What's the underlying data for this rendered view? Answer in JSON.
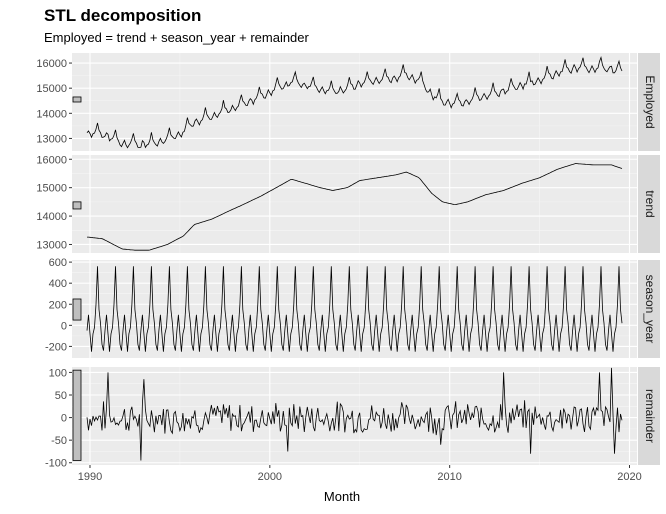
{
  "chart_data": {
    "type": "line",
    "title": "STL decomposition",
    "subtitle": "Employed = trend + season_year + remainder",
    "xlabel": "Month",
    "x_range": [
      "1989-01",
      "2020-06"
    ],
    "x_ticks": [
      {
        "year": 1990,
        "label": "1990"
      },
      {
        "year": 2000,
        "label": "2000"
      },
      {
        "year": 2010,
        "label": "2010"
      },
      {
        "year": 2020,
        "label": "2020"
      }
    ],
    "x_start": "1989-11",
    "x_end": "2019-08",
    "grid": true,
    "panels": [
      {
        "strip": "Employed",
        "ylim": [
          12500,
          16400
        ],
        "yticks": [
          13000,
          14000,
          15000,
          16000
        ],
        "scale_bar": [
          14450,
          14650
        ],
        "series": {
          "trend_anchors": [
            [
              1989.9,
              13200
            ],
            [
              1990.5,
              13150
            ],
            [
              1991.5,
              12900
            ],
            [
              1992.5,
              12800
            ],
            [
              1993.0,
              12780
            ],
            [
              1994.0,
              13000
            ],
            [
              1995.0,
              13300
            ],
            [
              1995.5,
              13650
            ],
            [
              1996.5,
              13850
            ],
            [
              1997.5,
              14100
            ],
            [
              1998.5,
              14350
            ],
            [
              1999.5,
              14650
            ],
            [
              2000.0,
              14950
            ],
            [
              2001.0,
              15100
            ],
            [
              2002.0,
              15000
            ],
            [
              2003.0,
              14900
            ],
            [
              2004.0,
              15000
            ],
            [
              2005.0,
              15150
            ],
            [
              2006.0,
              15300
            ],
            [
              2007.0,
              15450
            ],
            [
              2007.8,
              15550
            ],
            [
              2008.5,
              15300
            ],
            [
              2009.0,
              14800
            ],
            [
              2010.0,
              14450
            ],
            [
              2011.0,
              14550
            ],
            [
              2012.0,
              14750
            ],
            [
              2013.0,
              14900
            ],
            [
              2014.0,
              15100
            ],
            [
              2015.0,
              15300
            ],
            [
              2016.0,
              15550
            ],
            [
              2017.0,
              15700
            ],
            [
              2018.0,
              15750
            ],
            [
              2019.7,
              15700
            ]
          ],
          "seasonal_amplitude": 400
        }
      },
      {
        "strip": "trend",
        "ylim": [
          12700,
          16150
        ],
        "yticks": [
          13000,
          14000,
          15000,
          16000
        ],
        "scale_bar": [
          14250,
          14500
        ],
        "series": {
          "trend_anchors": [
            [
              1989.9,
              13260
            ],
            [
              1990.7,
              13200
            ],
            [
              1991.3,
              13000
            ],
            [
              1991.8,
              12840
            ],
            [
              1992.5,
              12800
            ],
            [
              1993.3,
              12800
            ],
            [
              1994.3,
              13000
            ],
            [
              1995.2,
              13300
            ],
            [
              1995.8,
              13700
            ],
            [
              1996.8,
              13900
            ],
            [
              1997.8,
              14200
            ],
            [
              1998.5,
              14400
            ],
            [
              1999.5,
              14700
            ],
            [
              2000.5,
              15050
            ],
            [
              2001.2,
              15300
            ],
            [
              2002.0,
              15150
            ],
            [
              2002.8,
              15000
            ],
            [
              2003.5,
              14900
            ],
            [
              2004.3,
              15000
            ],
            [
              2005.0,
              15250
            ],
            [
              2006.0,
              15350
            ],
            [
              2007.0,
              15450
            ],
            [
              2007.6,
              15550
            ],
            [
              2008.3,
              15350
            ],
            [
              2009.0,
              14800
            ],
            [
              2009.6,
              14500
            ],
            [
              2010.3,
              14400
            ],
            [
              2011.0,
              14500
            ],
            [
              2012.0,
              14750
            ],
            [
              2013.0,
              14900
            ],
            [
              2014.0,
              15150
            ],
            [
              2015.0,
              15350
            ],
            [
              2016.0,
              15650
            ],
            [
              2017.0,
              15850
            ],
            [
              2018.0,
              15800
            ],
            [
              2019.0,
              15800
            ],
            [
              2019.7,
              15650
            ]
          ]
        }
      },
      {
        "strip": "season_year",
        "ylim": [
          -310,
          620
        ],
        "yticks": [
          -200,
          0,
          200,
          400,
          600
        ],
        "scale_bar": [
          50,
          250
        ],
        "series": {
          "monthly_pattern": [
            -80,
            -250,
            -80,
            -20,
            200,
            560,
            150,
            20,
            -180,
            -240,
            -50,
            100
          ]
        }
      },
      {
        "strip": "remainder",
        "ylim": [
          -105,
          112
        ],
        "yticks": [
          -100,
          -50,
          0,
          50,
          100
        ],
        "scale_bar": [
          -95,
          105
        ],
        "series": {
          "spikes": [
            [
              1991.0,
              100
            ],
            [
              1992.8,
              -95
            ],
            [
              1993.0,
              85
            ],
            [
              2001.0,
              -75
            ],
            [
              2009.5,
              -60
            ],
            [
              2013.0,
              100
            ],
            [
              2014.5,
              -80
            ],
            [
              2018.3,
              100
            ],
            [
              2019.0,
              110
            ],
            [
              2019.2,
              -80
            ]
          ]
        }
      }
    ]
  }
}
